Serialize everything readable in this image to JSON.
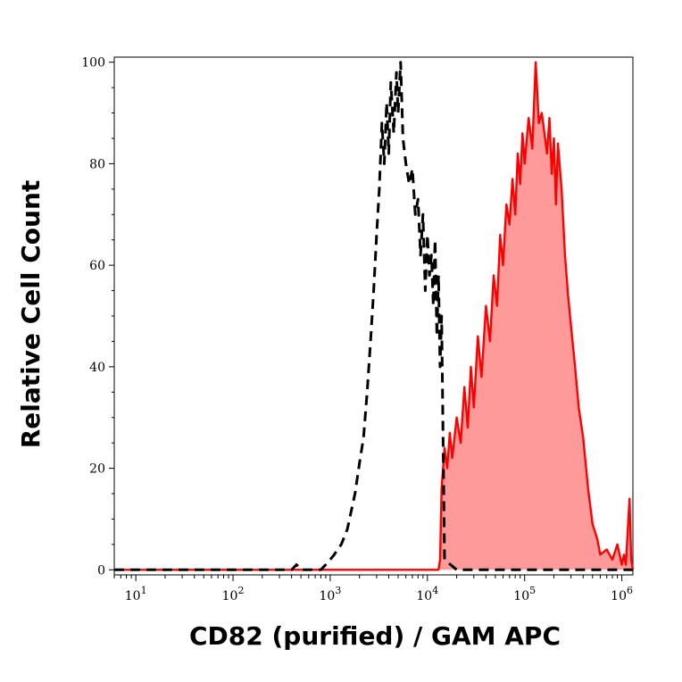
{
  "chart_data": {
    "type": "area",
    "title": "",
    "xlabel": "CD82 (purified) / GAM APC",
    "ylabel": "Relative Cell Count",
    "x_scale": "log",
    "xlim": [
      6,
      1300000
    ],
    "ylim": [
      -1,
      101
    ],
    "grid": false,
    "legend": "none",
    "y_ticks": [
      0,
      20,
      40,
      60,
      80,
      100
    ],
    "y_tick_labels": [
      "0",
      "20",
      "40",
      "60",
      "80",
      "100"
    ],
    "x_ticks": [
      10,
      100,
      1000,
      10000,
      100000,
      1000000
    ],
    "x_tick_labels": [
      {
        "base": "10",
        "exp": "1"
      },
      {
        "base": "10",
        "exp": "2"
      },
      {
        "base": "10",
        "exp": "3"
      },
      {
        "base": "10",
        "exp": "4"
      },
      {
        "base": "10",
        "exp": "5"
      },
      {
        "base": "10",
        "exp": "6"
      }
    ],
    "colors": {
      "stained_line": "#ff0000",
      "stained_fill": "#ff9a9a",
      "control_line": "#000000"
    },
    "series": [
      {
        "style": "dashed-outline",
        "x": [
          6,
          400,
          450,
          500,
          800,
          900,
          1000,
          1100,
          1300,
          1500,
          1800,
          2000,
          2200,
          2400,
          2600,
          2800,
          3000,
          3200,
          3400,
          3600,
          3800,
          4000,
          4200,
          4500,
          4800,
          5000,
          5300,
          5600,
          6000,
          6500,
          7000,
          7500,
          8000,
          8500,
          9000,
          9500,
          10000,
          10500,
          11000,
          11500,
          12000,
          12500,
          13000,
          13500,
          14000,
          15000,
          20000,
          100000,
          1000000,
          1300000
        ],
        "y": [
          0,
          0,
          1,
          0,
          0,
          1,
          2,
          3,
          5,
          8,
          15,
          21,
          26,
          35,
          45,
          55,
          66,
          75,
          88,
          80,
          92,
          82,
          96,
          86,
          98,
          90,
          100,
          85,
          80,
          76,
          79,
          70,
          73,
          62,
          70,
          55,
          66,
          58,
          62,
          52,
          65,
          46,
          58,
          40,
          50,
          2,
          0,
          0,
          0,
          0
        ]
      },
      {
        "style": "solid-filled",
        "x": [
          6,
          13000,
          13500,
          14000,
          15000,
          16000,
          17000,
          18000,
          20000,
          22000,
          24000,
          26000,
          28000,
          30000,
          33000,
          36000,
          40000,
          44000,
          48000,
          52000,
          56000,
          60000,
          65000,
          70000,
          75000,
          80000,
          85000,
          90000,
          95000,
          100000,
          110000,
          120000,
          125000,
          130000,
          140000,
          150000,
          160000,
          170000,
          180000,
          190000,
          200000,
          210000,
          220000,
          240000,
          260000,
          280000,
          300000,
          330000,
          360000,
          400000,
          450000,
          500000,
          560000,
          600000,
          700000,
          800000,
          900000,
          1000000,
          1050000,
          1100000,
          1200000,
          1250000,
          1300000
        ],
        "y": [
          0,
          0,
          2,
          16,
          24,
          20,
          27,
          22,
          30,
          25,
          36,
          28,
          40,
          32,
          46,
          38,
          52,
          45,
          58,
          52,
          66,
          60,
          72,
          68,
          77,
          70,
          82,
          76,
          86,
          80,
          89,
          83,
          92,
          100,
          88,
          90,
          86,
          82,
          89,
          78,
          85,
          72,
          84,
          75,
          62,
          54,
          48,
          40,
          32,
          26,
          16,
          9,
          6,
          3,
          4,
          2,
          5,
          1,
          3,
          1,
          14,
          2,
          0
        ]
      }
    ]
  }
}
